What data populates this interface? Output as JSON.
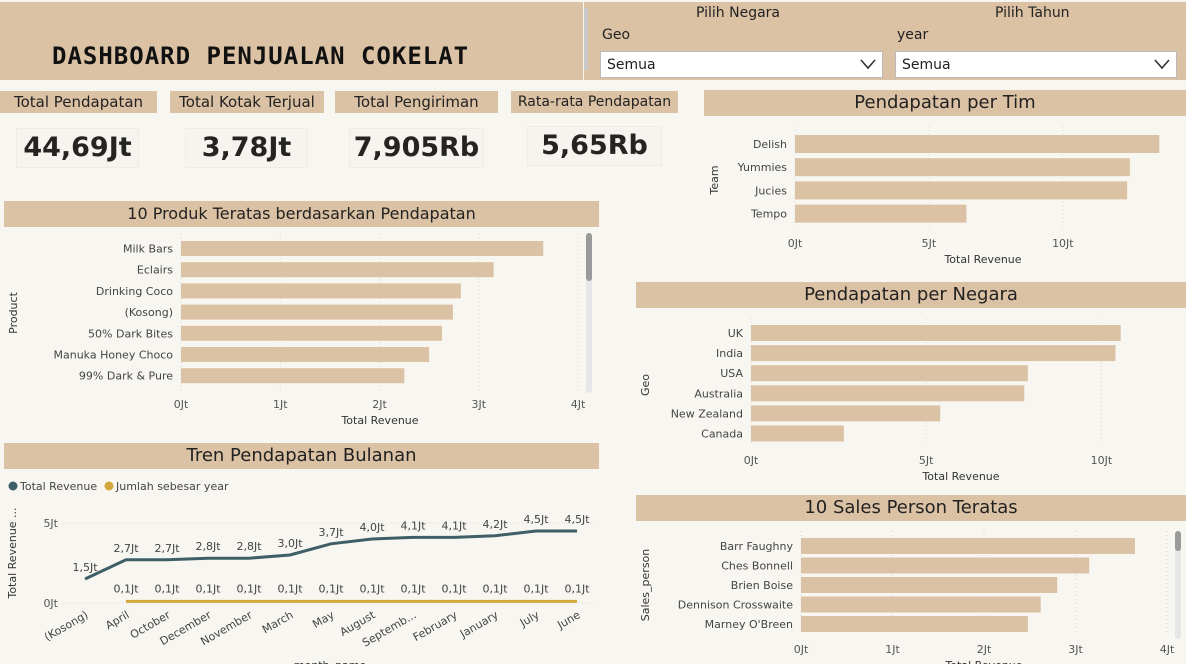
{
  "header": {
    "title": "DASHBOARD PENJUALAN COKELAT"
  },
  "filters": {
    "country": {
      "caption": "Pilih Negara",
      "field": "Geo",
      "selected": "Semua"
    },
    "year": {
      "caption": "Pilih Tahun",
      "field": "year",
      "selected": "Semua"
    }
  },
  "kpis": [
    {
      "label": "Total Pendapatan",
      "value": "44,69Jt"
    },
    {
      "label": "Total Kotak Terjual",
      "value": "3,78Jt"
    },
    {
      "label": "Total Pengiriman",
      "value": "7,905Rb"
    },
    {
      "label": "Rata-rata Pendapatan",
      "value": "5,65Rb"
    }
  ],
  "colors": {
    "bar": "#dcc2a4",
    "revenue_line": "#3f5f66",
    "year_line": "#d4a93c",
    "banner": "#dcc2a4"
  },
  "chart_data": [
    {
      "id": "products",
      "type": "bar",
      "orientation": "horizontal",
      "title": "10 Produk Teratas berdasarkan Pendapatan",
      "xlabel": "Total Revenue",
      "ylabel": "Product",
      "categories": [
        "Milk Bars",
        "Eclairs",
        "Drinking Coco",
        "(Kosong)",
        "50% Dark Bites",
        "Manuka Honey Choco",
        "99% Dark & Pure"
      ],
      "values": [
        3.65,
        3.15,
        2.82,
        2.74,
        2.63,
        2.5,
        2.25
      ],
      "xlim": [
        0,
        4
      ],
      "xticks": [
        {
          "v": 0,
          "label": "0Jt"
        },
        {
          "v": 1,
          "label": "1Jt"
        },
        {
          "v": 2,
          "label": "2Jt"
        },
        {
          "v": 3,
          "label": "3Jt"
        },
        {
          "v": 4,
          "label": "4Jt"
        }
      ],
      "grid": true
    },
    {
      "id": "teams",
      "type": "bar",
      "orientation": "horizontal",
      "title": "Pendapatan per Tim",
      "xlabel": "Total Revenue",
      "ylabel": "Team",
      "categories": [
        "Delish",
        "Yummies",
        "Jucies",
        "Tempo"
      ],
      "values": [
        13.6,
        12.5,
        12.4,
        6.4
      ],
      "xlim": [
        0,
        14
      ],
      "xticks": [
        {
          "v": 0,
          "label": "0Jt"
        },
        {
          "v": 5,
          "label": "5Jt"
        },
        {
          "v": 10,
          "label": "10Jt"
        }
      ],
      "grid": true
    },
    {
      "id": "countries",
      "type": "bar",
      "orientation": "horizontal",
      "title": "Pendapatan per Negara",
      "xlabel": "Total Revenue",
      "ylabel": "Geo",
      "categories": [
        "UK",
        "India",
        "USA",
        "Australia",
        "New Zealand",
        "Canada"
      ],
      "values": [
        10.55,
        10.4,
        7.9,
        7.8,
        5.4,
        2.65
      ],
      "xlim": [
        0,
        11.5
      ],
      "xticks": [
        {
          "v": 0,
          "label": "0Jt"
        },
        {
          "v": 5,
          "label": "5Jt"
        },
        {
          "v": 10,
          "label": "10Jt"
        }
      ],
      "grid": true
    },
    {
      "id": "salespeople",
      "type": "bar",
      "orientation": "horizontal",
      "title": "10 Sales Person Teratas",
      "xlabel": "Total Revenue",
      "ylabel": "Sales_person",
      "categories": [
        "Barr Faughny",
        "Ches Bonnell",
        "Brien Boise",
        "Dennison Crosswaite",
        "Marney O'Breen"
      ],
      "values": [
        3.65,
        3.15,
        2.8,
        2.62,
        2.48
      ],
      "xlim": [
        0,
        4
      ],
      "xticks": [
        {
          "v": 0,
          "label": "0Jt"
        },
        {
          "v": 1,
          "label": "1Jt"
        },
        {
          "v": 2,
          "label": "2Jt"
        },
        {
          "v": 3,
          "label": "3Jt"
        },
        {
          "v": 4,
          "label": "4Jt"
        }
      ],
      "grid": true
    },
    {
      "id": "trend",
      "type": "line",
      "title": "Tren Pendapatan Bulanan",
      "xlabel": "month_name",
      "ylabel": "Total Revenue ...",
      "categories": [
        "(Kosong)",
        "April",
        "October",
        "December",
        "November",
        "March",
        "May",
        "August",
        "Septemb...",
        "February",
        "January",
        "July",
        "June"
      ],
      "series": [
        {
          "name": "Total Revenue",
          "values": [
            1.5,
            2.7,
            2.7,
            2.8,
            2.8,
            3.0,
            3.7,
            4.0,
            4.1,
            4.1,
            4.2,
            4.5,
            4.5
          ],
          "labels": [
            "1,5Jt",
            "2,7Jt",
            "2,7Jt",
            "2,8Jt",
            "2,8Jt",
            "3,0Jt",
            "3,7Jt",
            "4,0Jt",
            "4,1Jt",
            "4,1Jt",
            "4,2Jt",
            "4,5Jt",
            "4,5Jt"
          ]
        },
        {
          "name": "Jumlah sebesar year",
          "values": [
            null,
            0.1,
            0.1,
            0.1,
            0.1,
            0.1,
            0.1,
            0.1,
            0.1,
            0.1,
            0.1,
            0.1,
            0.1
          ],
          "labels": [
            "",
            "0,1Jt",
            "0,1Jt",
            "0,1Jt",
            "0,1Jt",
            "0,1Jt",
            "0,1Jt",
            "0,1Jt",
            "0,1Jt",
            "0,1Jt",
            "0,1Jt",
            "0,1Jt",
            "0,1Jt"
          ]
        }
      ],
      "ylim": [
        0,
        5
      ],
      "yticks": [
        {
          "v": 0,
          "label": "0Jt"
        },
        {
          "v": 5,
          "label": "5Jt"
        }
      ],
      "legend": "top-left",
      "grid": true
    }
  ]
}
